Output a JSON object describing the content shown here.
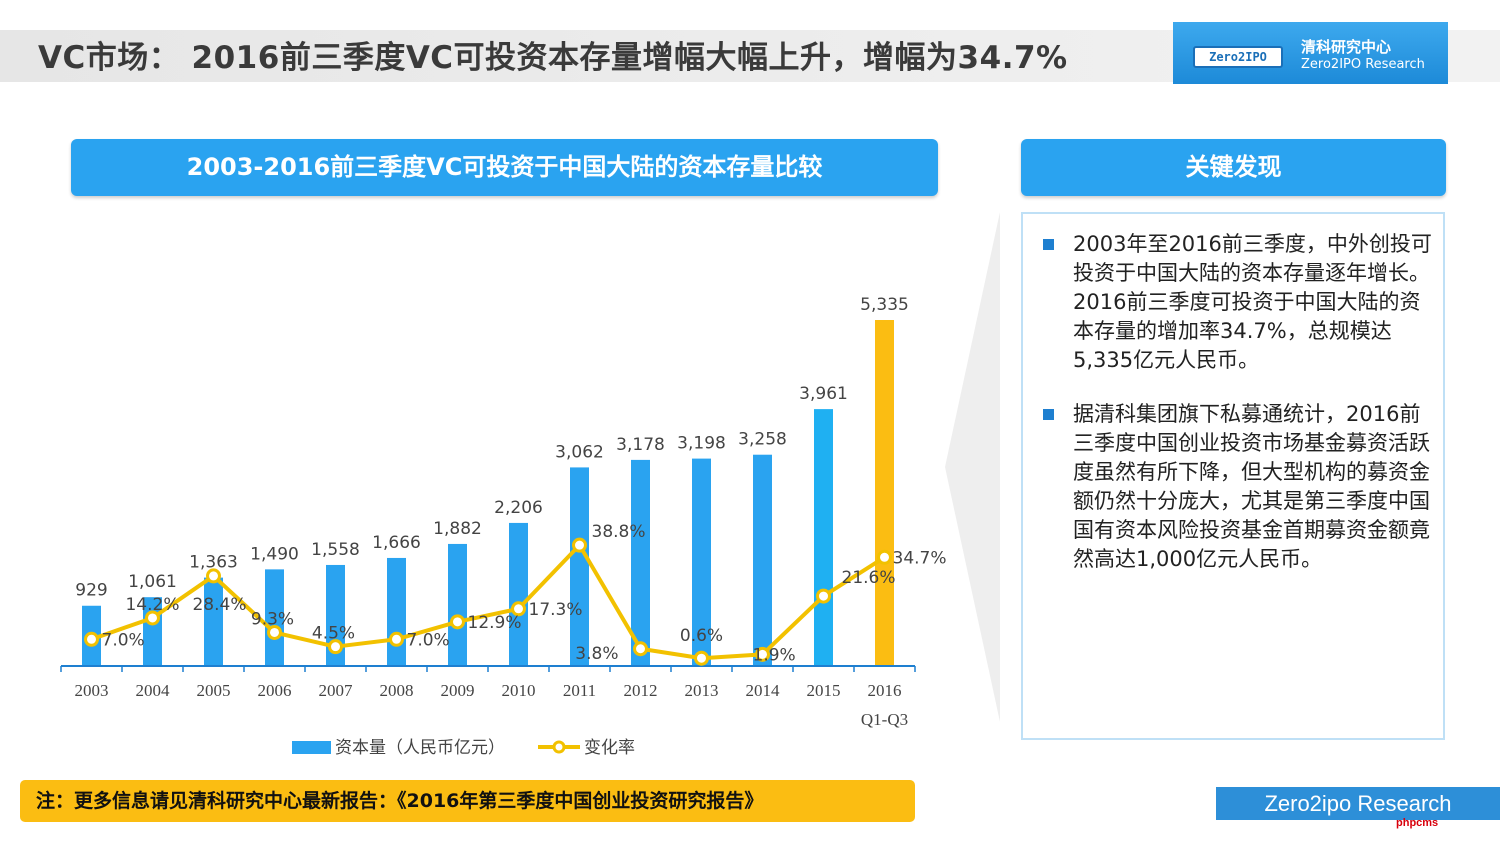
{
  "slide_title": "VC市场： 2016前三季度VC可投资本存量增幅大幅上升，增幅为34.7%",
  "logo": {
    "badge": "Zero2IPO",
    "name_cn": "清科研究中心",
    "name_en": "Zero2IPO Research"
  },
  "chart_header": "2003-2016前三季度VC可投资于中国大陆的资本存量比较",
  "findings": {
    "title": "关键发现",
    "items": [
      "2003年至2016前三季度，中外创投可投资于中国大陆的资本存量逐年增长。2016前三季度可投资于中国大陆的资本存量的增加率34.7%，总规模达5,335亿元人民币。",
      "据清科集团旗下私募通统计，2016前三季度中国创业投资市场基金募资活跃度虽然有所下降，但大型机构的募资金额仍然十分庞大，尤其是第三季度中国国有资本风险投资基金首期募资金额竟然高达1,000亿元人民币。"
    ]
  },
  "note": "注：更多信息请见清科研究中心最新报告：《2016年第三季度中国创业投资研究报告》",
  "footer": "Zero2ipo Research",
  "watermark": "phpcms",
  "colors": {
    "bar": "#2aa3f0",
    "bar_2015": "#1fb0f2",
    "bar_highlight": "#fbbd12",
    "line": "#f2c100",
    "header": "#2aa3f0"
  },
  "chart_data": {
    "type": "bar",
    "categories": [
      "2003",
      "2004",
      "2005",
      "2006",
      "2007",
      "2008",
      "2009",
      "2010",
      "2011",
      "2012",
      "2013",
      "2014",
      "2015",
      "2016 Q1-Q3"
    ],
    "series": [
      {
        "name": "资本量（人民币亿元）",
        "type": "bar",
        "values": [
          929,
          1061,
          1363,
          1490,
          1558,
          1666,
          1882,
          2206,
          3062,
          3178,
          3198,
          3258,
          3961,
          5335
        ],
        "labels": [
          "929",
          "1,061",
          "1,363",
          "1,490",
          "1,558",
          "1,666",
          "1,882",
          "2,206",
          "3,062",
          "3,178",
          "3,198",
          "3,258",
          "3,961",
          "5,335"
        ]
      },
      {
        "name": "变化率",
        "type": "line",
        "values": [
          7.0,
          14.2,
          28.4,
          9.3,
          4.5,
          7.0,
          12.9,
          17.3,
          38.8,
          3.8,
          0.6,
          1.9,
          21.6,
          34.7
        ],
        "labels": [
          "7.0%",
          "14.2%",
          "28.4%",
          "9.3%",
          "4.5%",
          "7.0%",
          "12.9%",
          "17.3%",
          "38.8%",
          "3.8%",
          "0.6%",
          "1.9%",
          "21.6%",
          "34.7%"
        ]
      }
    ],
    "highlight_category": "2016 Q1-Q3",
    "legend_position": "bottom",
    "grid": false
  }
}
